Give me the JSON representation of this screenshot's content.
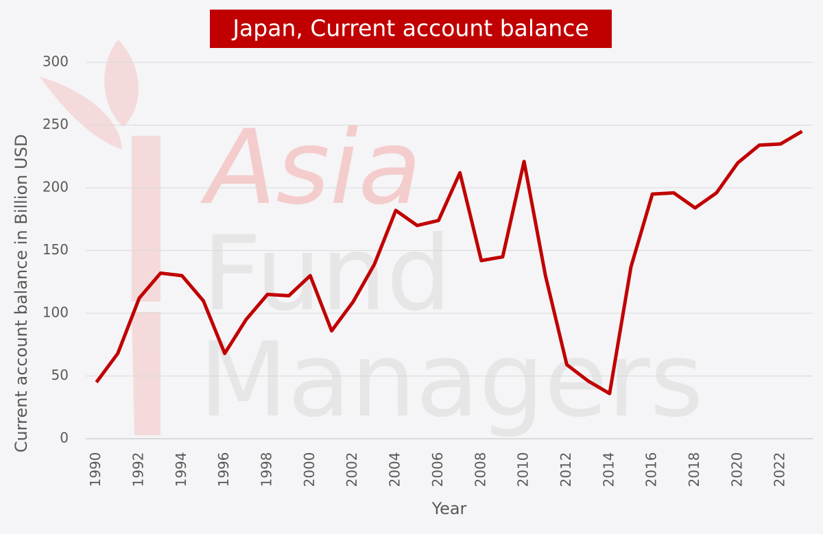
{
  "chart_data": {
    "type": "line",
    "title": "Japan, Current account balance",
    "watermark": [
      "Asia",
      "Fund",
      "Managers"
    ],
    "x_label": "Year",
    "y_label": "Current account balance in Billion USD",
    "x": [
      1990,
      1991,
      1992,
      1993,
      1994,
      1995,
      1996,
      1997,
      1998,
      1999,
      2000,
      2001,
      2002,
      2003,
      2004,
      2005,
      2006,
      2007,
      2008,
      2009,
      2010,
      2011,
      2012,
      2013,
      2014,
      2015,
      2016,
      2017,
      2018,
      2019,
      2020,
      2021,
      2022,
      2023
    ],
    "series": [
      {
        "name": "Current account balance",
        "color": "#c00000",
        "values": [
          45,
          68,
          112,
          132,
          130,
          110,
          68,
          95,
          115,
          114,
          130,
          86,
          109,
          139,
          182,
          170,
          174,
          212,
          142,
          145,
          221,
          130,
          59,
          46,
          36,
          137,
          195,
          196,
          184,
          196,
          220,
          234,
          235,
          245
        ]
      }
    ],
    "xlim": [
      1989.5,
      2023.5
    ],
    "xticks": [
      1990,
      1992,
      1994,
      1996,
      1998,
      2000,
      2002,
      2004,
      2006,
      2008,
      2010,
      2012,
      2014,
      2016,
      2018,
      2020,
      2022
    ],
    "ylim": [
      0,
      300
    ],
    "yticks": [
      0,
      50,
      100,
      150,
      200,
      250,
      300
    ],
    "grid": true
  }
}
